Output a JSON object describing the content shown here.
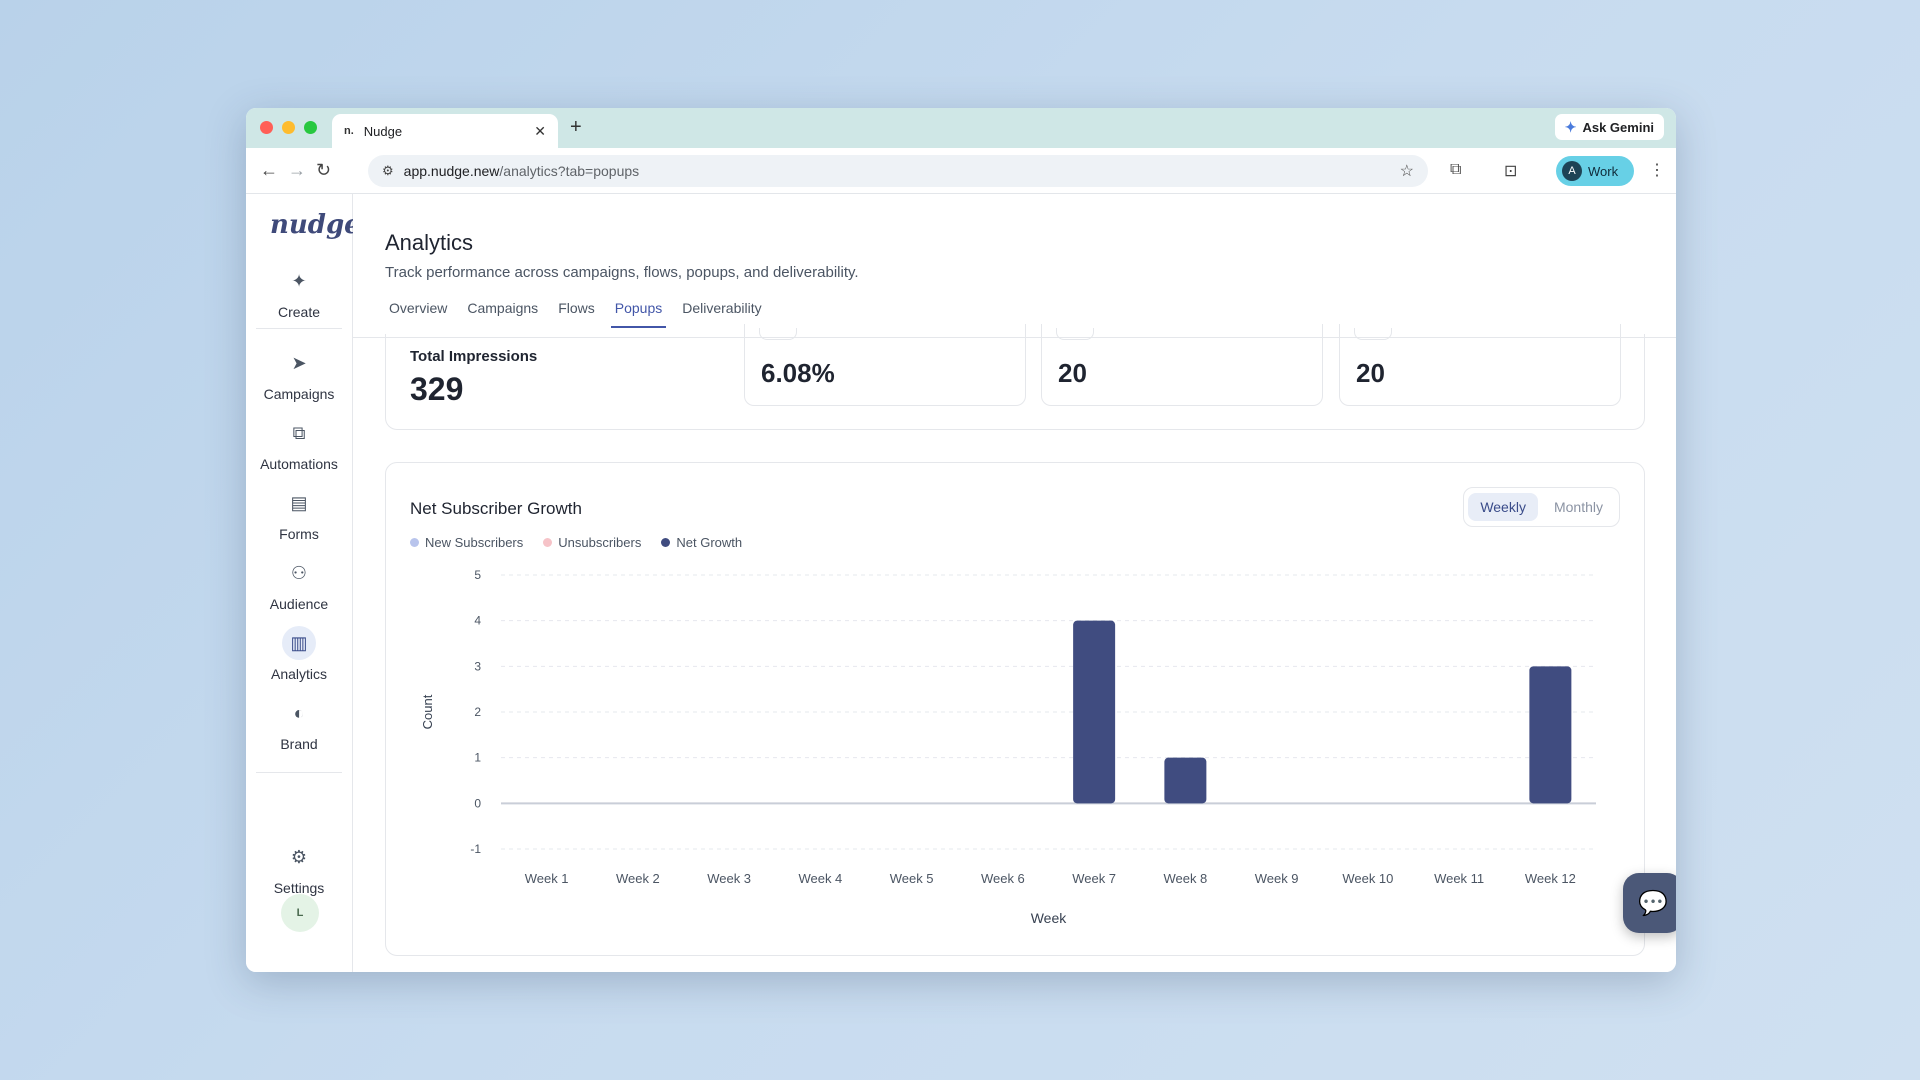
{
  "browser": {
    "tab_title": "Nudge",
    "tab_favicon": "n.",
    "url_host": "app.nudge.new",
    "url_path": "/analytics?tab=popups",
    "gemini_label": "Ask Gemini",
    "profile_initial": "A",
    "profile_label": "Work"
  },
  "sidebar": {
    "logo": "nudge",
    "items": [
      {
        "label": "Create",
        "icon": "plus-icon"
      },
      {
        "label": "Campaigns",
        "icon": "send-icon"
      },
      {
        "label": "Automations",
        "icon": "flow-icon"
      },
      {
        "label": "Forms",
        "icon": "document-icon"
      },
      {
        "label": "Audience",
        "icon": "users-icon"
      },
      {
        "label": "Analytics",
        "icon": "bar-chart-icon"
      },
      {
        "label": "Brand",
        "icon": "palette-icon"
      },
      {
        "label": "Settings",
        "icon": "gear-icon"
      }
    ],
    "user_initial": "L"
  },
  "page": {
    "title": "Analytics",
    "subtitle": "Track performance across campaigns, flows, popups, and deliverability.",
    "tabs": [
      "Overview",
      "Campaigns",
      "Flows",
      "Popups",
      "Deliverability"
    ],
    "active_tab": "Popups"
  },
  "stats": {
    "first_label": "Total Impressions",
    "first_value": "329",
    "values": [
      "6.08%",
      "20",
      "20"
    ]
  },
  "chart_card": {
    "title": "Net Subscriber Growth",
    "toggle": [
      "Weekly",
      "Monthly"
    ],
    "active_toggle": "Weekly",
    "legend": [
      {
        "name": "New Subscribers",
        "color": "#b8c4ec"
      },
      {
        "name": "Unsubscribers",
        "color": "#f6c3c8"
      },
      {
        "name": "Net Growth",
        "color": "#404c80"
      }
    ]
  },
  "chart_data": {
    "type": "bar",
    "categories": [
      "Week 1",
      "Week 2",
      "Week 3",
      "Week 4",
      "Week 5",
      "Week 6",
      "Week 7",
      "Week 8",
      "Week 9",
      "Week 10",
      "Week 11",
      "Week 12"
    ],
    "series": [
      {
        "name": "Net Growth",
        "values": [
          0,
          0,
          0,
          0,
          0,
          0,
          4,
          1,
          0,
          0,
          0,
          3
        ],
        "color": "#404c80"
      }
    ],
    "xlabel": "Week",
    "ylabel": "Count",
    "ylim": [
      -1,
      5
    ],
    "yticks": [
      -1,
      0,
      1,
      2,
      3,
      4,
      5
    ],
    "grid": true
  },
  "colors": {
    "accent": "#4256a8",
    "bar": "#404c80"
  }
}
